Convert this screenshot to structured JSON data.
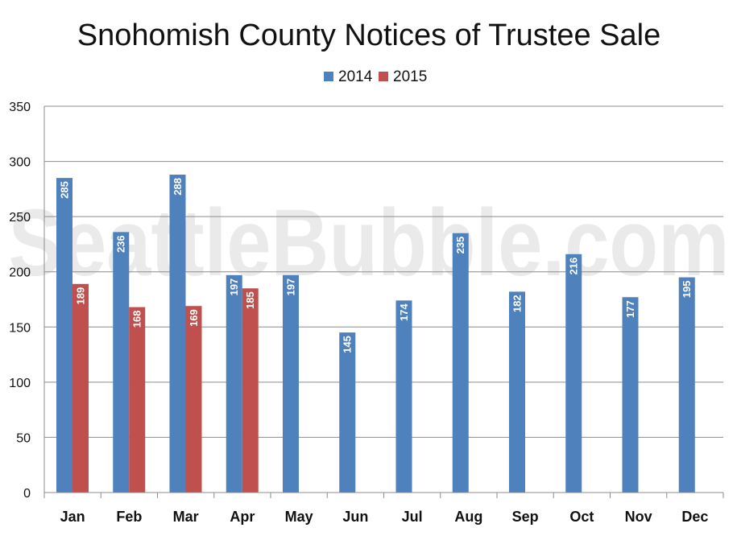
{
  "chart_data": {
    "type": "bar",
    "title": "Snohomish County Notices of Trustee Sale",
    "watermark": "SeattleBubble.com",
    "categories": [
      "Jan",
      "Feb",
      "Mar",
      "Apr",
      "May",
      "Jun",
      "Jul",
      "Aug",
      "Sep",
      "Oct",
      "Nov",
      "Dec"
    ],
    "series": [
      {
        "name": "2014",
        "color": "#4f81bd",
        "values": [
          285,
          236,
          288,
          197,
          197,
          145,
          174,
          235,
          182,
          216,
          177,
          195
        ]
      },
      {
        "name": "2015",
        "color": "#c0504d",
        "values": [
          189,
          168,
          169,
          185,
          null,
          null,
          null,
          null,
          null,
          null,
          null,
          null
        ]
      }
    ],
    "ylim": [
      0,
      350
    ],
    "yticks": [
      0,
      50,
      100,
      150,
      200,
      250,
      300,
      350
    ],
    "grid": true,
    "legend": "top-center",
    "data_labels": "inside-end-rotated"
  }
}
